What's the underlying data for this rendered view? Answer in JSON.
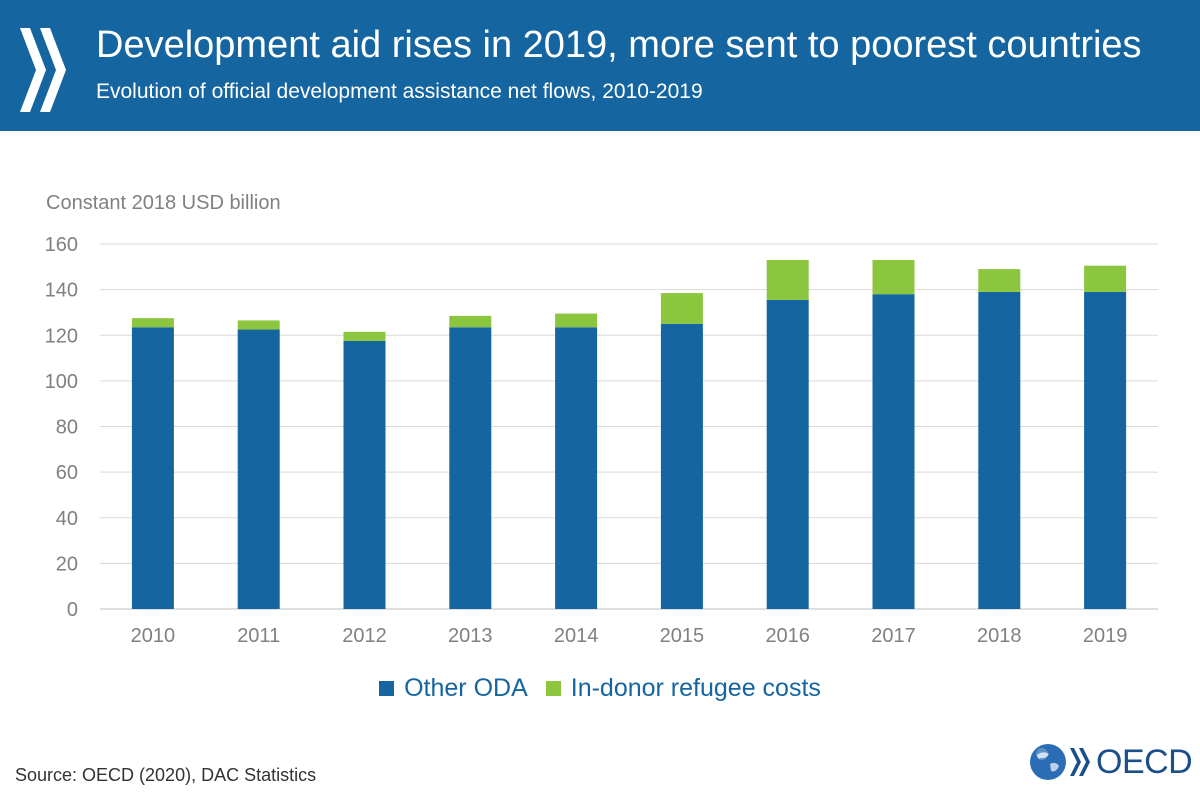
{
  "header": {
    "title": "Development aid rises in 2019, more sent to poorest countries",
    "subtitle": "Evolution of official development assistance net flows, 2010-2019"
  },
  "colors": {
    "banner": "#1565a0",
    "other_oda": "#1565a0",
    "refugee_costs": "#8cc63f",
    "gridline": "#d9d9d9",
    "axis_text": "#808080"
  },
  "chart_data": {
    "type": "bar",
    "stacked": true,
    "ylabel": "Constant 2018 USD billion",
    "ylim": [
      0,
      160
    ],
    "yticks": [
      0,
      20,
      40,
      60,
      80,
      100,
      120,
      140,
      160
    ],
    "grid": true,
    "legend_position": "bottom",
    "categories": [
      "2010",
      "2011",
      "2012",
      "2013",
      "2014",
      "2015",
      "2016",
      "2017",
      "2018",
      "2019"
    ],
    "series": [
      {
        "name": "Other ODA",
        "color": "#1565a0",
        "values": [
          123.5,
          122.5,
          117.5,
          123.5,
          123.5,
          125,
          135.5,
          138,
          139,
          139
        ]
      },
      {
        "name": "In-donor refugee costs",
        "color": "#8cc63f",
        "values": [
          4,
          4,
          4,
          5,
          6,
          13.5,
          17.5,
          15,
          10,
          11.5
        ]
      }
    ]
  },
  "footer": {
    "source": "Source: OECD (2020), DAC Statistics",
    "logo_text": "OECD"
  }
}
